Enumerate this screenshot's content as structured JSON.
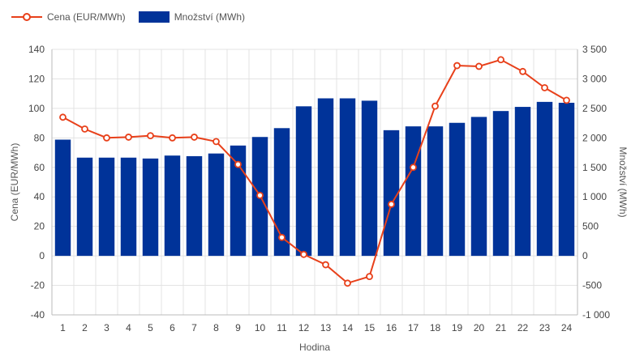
{
  "chart_data": {
    "type": "bar",
    "categories": [
      "1",
      "2",
      "3",
      "4",
      "5",
      "6",
      "7",
      "8",
      "9",
      "10",
      "11",
      "12",
      "13",
      "14",
      "15",
      "16",
      "17",
      "18",
      "19",
      "20",
      "21",
      "22",
      "23",
      "24"
    ],
    "series": [
      {
        "name": "Cena (EUR/MWh)",
        "type": "line",
        "axis": "left",
        "color": "#e8401a",
        "values": [
          94,
          86,
          80,
          80.5,
          81.5,
          80,
          80.5,
          77.5,
          62,
          41,
          12.5,
          1,
          -6,
          -18.5,
          -14,
          35,
          60,
          101.5,
          129,
          128.5,
          133,
          125,
          114,
          105.5
        ]
      },
      {
        "name": "Množství (MWh)",
        "type": "bar",
        "axis": "right",
        "color": "#003399",
        "values": [
          1970,
          1665,
          1665,
          1665,
          1650,
          1700,
          1690,
          1735,
          1870,
          2015,
          2165,
          2535,
          2670,
          2670,
          2630,
          2130,
          2195,
          2195,
          2255,
          2355,
          2455,
          2525,
          2610,
          2595
        ]
      }
    ],
    "xlabel": "Hodina",
    "ylabel": "Cena (EUR/MWh)",
    "y2label": "Množství (MWh)",
    "ylim": [
      -40,
      140
    ],
    "y2lim": [
      -1000,
      3500
    ],
    "yticks": [
      140,
      120,
      100,
      80,
      60,
      40,
      20,
      0,
      -20,
      -40
    ],
    "y2tick_labels": [
      "3 500",
      "3 000",
      "2 500",
      "2 000",
      "1 500",
      "1 000",
      "500",
      "0",
      "-500",
      "-1 000"
    ],
    "grid": true,
    "legend": "top-left"
  }
}
